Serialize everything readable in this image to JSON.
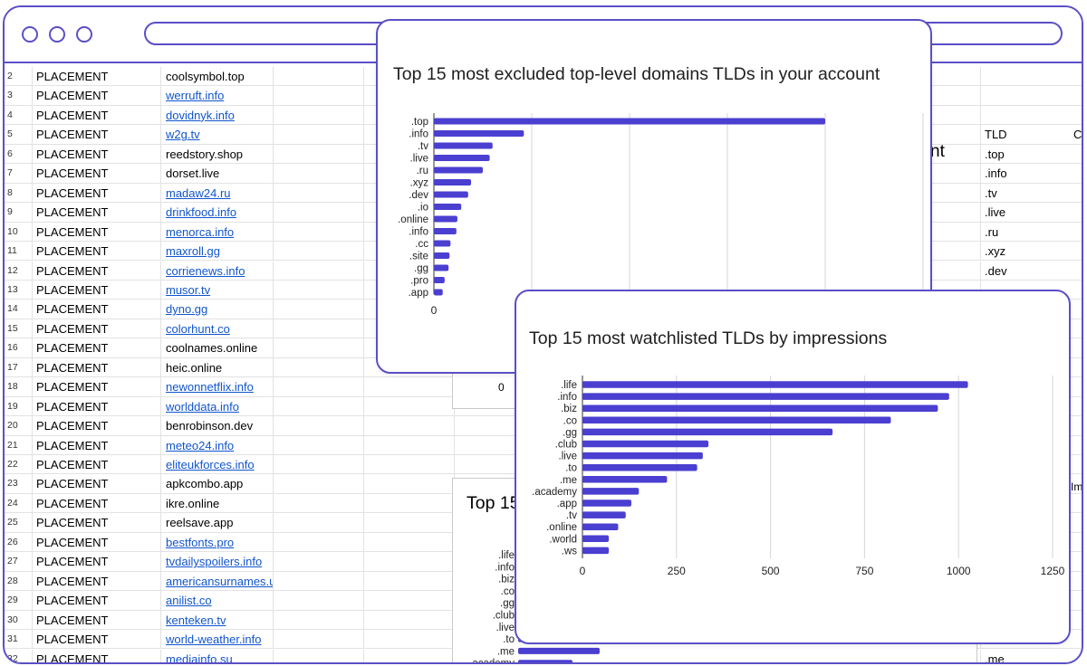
{
  "sheet": {
    "rows": [
      {
        "num": "2",
        "type": "PLACEMENT",
        "url": "coolsymbol.top",
        "link": false
      },
      {
        "num": "3",
        "type": "PLACEMENT",
        "url": "werruft.info",
        "link": true
      },
      {
        "num": "4",
        "type": "PLACEMENT",
        "url": "dovidnyk.info",
        "link": true
      },
      {
        "num": "5",
        "type": "PLACEMENT",
        "url": "w2g.tv",
        "link": true
      },
      {
        "num": "6",
        "type": "PLACEMENT",
        "url": "reedstory.shop",
        "link": false
      },
      {
        "num": "7",
        "type": "PLACEMENT",
        "url": "dorset.live",
        "link": false
      },
      {
        "num": "8",
        "type": "PLACEMENT",
        "url": "madaw24.ru",
        "link": true
      },
      {
        "num": "9",
        "type": "PLACEMENT",
        "url": "drinkfood.info",
        "link": true
      },
      {
        "num": "10",
        "type": "PLACEMENT",
        "url": "menorca.info",
        "link": true
      },
      {
        "num": "11",
        "type": "PLACEMENT",
        "url": "maxroll.gg",
        "link": true
      },
      {
        "num": "12",
        "type": "PLACEMENT",
        "url": "corrienews.info",
        "link": true
      },
      {
        "num": "13",
        "type": "PLACEMENT",
        "url": "musor.tv",
        "link": true
      },
      {
        "num": "14",
        "type": "PLACEMENT",
        "url": "dyno.gg",
        "link": true
      },
      {
        "num": "15",
        "type": "PLACEMENT",
        "url": "colorhunt.co",
        "link": true
      },
      {
        "num": "16",
        "type": "PLACEMENT",
        "url": "coolnames.online",
        "link": false
      },
      {
        "num": "17",
        "type": "PLACEMENT",
        "url": "heic.online",
        "link": false
      },
      {
        "num": "18",
        "type": "PLACEMENT",
        "url": "newonnetflix.info",
        "link": true
      },
      {
        "num": "19",
        "type": "PLACEMENT",
        "url": "worlddata.info",
        "link": true
      },
      {
        "num": "20",
        "type": "PLACEMENT",
        "url": "benrobinson.dev",
        "link": false
      },
      {
        "num": "21",
        "type": "PLACEMENT",
        "url": "meteo24.info",
        "link": true
      },
      {
        "num": "22",
        "type": "PLACEMENT",
        "url": "eliteukforces.info",
        "link": true
      },
      {
        "num": "23",
        "type": "PLACEMENT",
        "url": "apkcombo.app",
        "link": false
      },
      {
        "num": "24",
        "type": "PLACEMENT",
        "url": "ikre.online",
        "link": false
      },
      {
        "num": "25",
        "type": "PLACEMENT",
        "url": "reelsave.app",
        "link": false
      },
      {
        "num": "26",
        "type": "PLACEMENT",
        "url": "bestfonts.pro",
        "link": true
      },
      {
        "num": "27",
        "type": "PLACEMENT",
        "url": "tvdailyspoilers.info",
        "link": true
      },
      {
        "num": "28",
        "type": "PLACEMENT",
        "url": "americansurnames.us",
        "link": true
      },
      {
        "num": "29",
        "type": "PLACEMENT",
        "url": "anilist.co",
        "link": true
      },
      {
        "num": "30",
        "type": "PLACEMENT",
        "url": "kenteken.tv",
        "link": true
      },
      {
        "num": "31",
        "type": "PLACEMENT",
        "url": "world-weather.info",
        "link": true
      },
      {
        "num": "32",
        "type": "PLACEMENT",
        "url": "mediainfo.su",
        "link": true
      }
    ],
    "tld_header": "TLD",
    "tld_header2": "Co",
    "tld_values": [
      ".top",
      ".info",
      ".tv",
      ".live",
      ".ru",
      ".xyz",
      ".dev"
    ],
    "tld_bottom": ".me",
    "bg_chart_title": "Top 15",
    "bg_chart_title_fragment": "nt",
    "bg_chart_zero": "0",
    "bg_right_fragment": "Im",
    "bg_chart_labels": [
      ".life",
      ".info",
      ".biz",
      ".co",
      ".gg",
      ".club",
      ".live",
      ".to",
      ".me",
      ".academy"
    ]
  },
  "colors": {
    "frame": "#5b4fc7",
    "bar": "#4a3fd0",
    "link": "#1155cc"
  },
  "chart_data": [
    {
      "type": "bar",
      "orientation": "horizontal",
      "title": "Top 15 most excluded top-level domains TLDs in your account",
      "categories": [
        ".top",
        ".info",
        ".tv",
        ".live",
        ".ru",
        ".xyz",
        ".dev",
        ".io",
        ".online",
        ".info",
        ".cc",
        ".site",
        ".gg",
        ".pro",
        ".app"
      ],
      "values": [
        400,
        92,
        60,
        57,
        50,
        38,
        35,
        28,
        24,
        23,
        17,
        16,
        15,
        11,
        9
      ],
      "xlim": [
        0,
        500
      ],
      "x_tick_labels": [
        "0"
      ],
      "grid": true
    },
    {
      "type": "bar",
      "orientation": "horizontal",
      "title": "Top 15 most watchlisted TLDs by impressions",
      "categories": [
        ".life",
        ".info",
        ".biz",
        ".co",
        ".gg",
        ".club",
        ".live",
        ".to",
        ".me",
        ".academy",
        ".app",
        ".tv",
        ".online",
        ".world",
        ".ws"
      ],
      "values": [
        1025,
        975,
        945,
        820,
        665,
        335,
        320,
        305,
        225,
        150,
        130,
        115,
        95,
        70,
        70
      ],
      "xlim": [
        0,
        1250
      ],
      "x_ticks": [
        0,
        250,
        500,
        750,
        1000,
        1250
      ],
      "grid": true
    }
  ]
}
